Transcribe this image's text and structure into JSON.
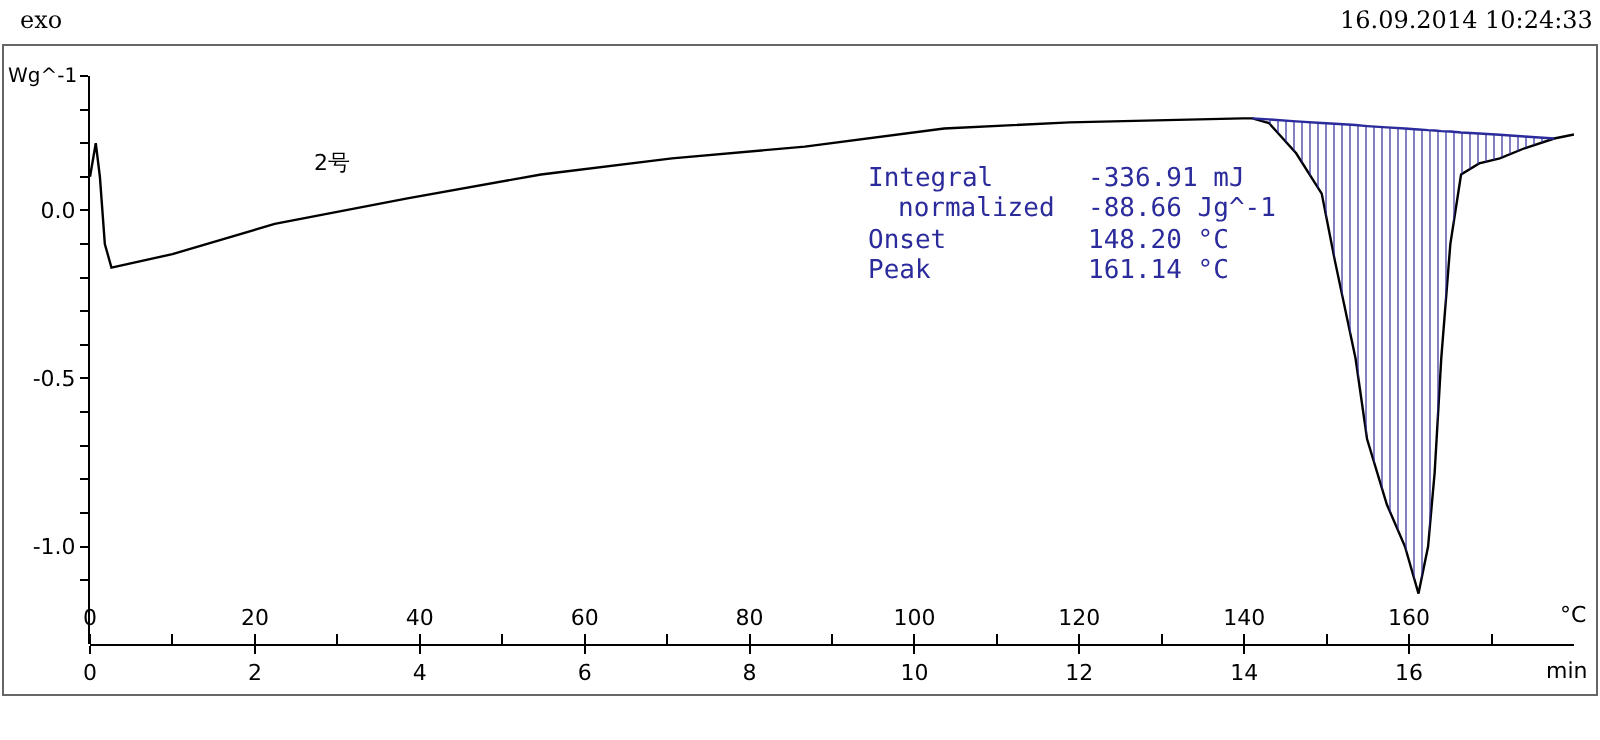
{
  "chart_data": {
    "type": "line",
    "x": [
      0,
      0.7,
      1.2,
      1.8,
      2.6,
      10,
      22.4,
      38.5,
      54.7,
      70.6,
      86.7,
      103.6,
      118.8,
      139.8,
      141,
      143,
      146.3,
      149.4,
      151,
      153.5,
      154.9,
      157.3,
      159.5,
      161.14,
      162.3,
      163.1,
      163.9,
      165,
      166.3,
      168.5,
      171,
      174,
      177.6,
      180
    ],
    "series": [
      {
        "color": "#000000",
        "values": [
          0.1,
          0.2,
          0.1,
          -0.1,
          -0.17,
          -0.13,
          -0.04,
          0.036,
          0.107,
          0.155,
          0.19,
          0.244,
          0.262,
          0.274,
          0.274,
          0.26,
          0.17,
          0.05,
          -0.15,
          -0.44,
          -0.68,
          -0.875,
          -1.0,
          -1.14,
          -1.0,
          -0.78,
          -0.44,
          -0.1,
          0.107,
          0.14,
          0.155,
          0.185,
          0.214,
          0.226
        ]
      },
      {
        "type": "line",
        "color": "#2b2b9c",
        "x": [
          141,
          143,
          146.3,
          149.4,
          151,
          153.5,
          154.9,
          157.3,
          159.5,
          161.14,
          162.3,
          163.1,
          163.9,
          165,
          166.3,
          168.5,
          171,
          174,
          177.6
        ],
        "values": [
          0.274,
          0.271,
          0.265,
          0.26,
          0.258,
          0.254,
          0.251,
          0.247,
          0.244,
          0.241,
          0.239,
          0.238,
          0.236,
          0.235,
          0.232,
          0.229,
          0.225,
          0.22,
          0.214
        ],
        "lower": [
          0.274,
          0.26,
          0.17,
          0.05,
          -0.15,
          -0.44,
          -0.68,
          -0.875,
          -1.0,
          -1.14,
          -1.0,
          -0.78,
          -0.44,
          -0.1,
          0.107,
          0.14,
          0.155,
          0.185,
          0.214
        ],
        "upper": [
          0.274,
          0.271,
          0.265,
          0.26,
          0.258,
          0.254,
          0.251,
          0.247,
          0.244,
          0.241,
          0.239,
          0.238,
          0.236,
          0.235,
          0.232,
          0.229,
          0.225,
          0.22,
          0.214
        ]
      }
    ],
    "xlabel": "°C",
    "x2label": "min",
    "ylabel": "Wg^-1",
    "xlim": [
      0,
      180
    ],
    "xticks": [
      0,
      {
        "value": 10,
        "label": null
      },
      20,
      {
        "value": 30,
        "label": null
      },
      40,
      {
        "value": 50,
        "label": null
      },
      60,
      {
        "value": 70,
        "label": null
      },
      80,
      {
        "value": 90,
        "label": null
      },
      100,
      {
        "value": 110,
        "label": null
      },
      120,
      {
        "value": 130,
        "label": null
      },
      140,
      {
        "value": 150,
        "label": null
      },
      160,
      {
        "value": 170,
        "label": null
      }
    ],
    "x2lim": [
      0,
      18
    ],
    "x2ticks": [
      0,
      2,
      4,
      6,
      8,
      10,
      12,
      14,
      16
    ],
    "ylim": [
      -1.29,
      0.4
    ],
    "yticks": [
      {
        "value": 0.4,
        "label": null
      },
      {
        "value": 0.3,
        "label": null
      },
      {
        "value": 0.2,
        "label": null
      },
      {
        "value": 0.1,
        "label": null
      },
      {
        "value": 0,
        "label": "0.0"
      },
      {
        "value": -0.1,
        "label": null
      },
      {
        "value": -0.2,
        "label": null
      },
      {
        "value": -0.3,
        "label": null
      },
      {
        "value": -0.4,
        "label": null
      },
      {
        "value": -0.5,
        "label": "-0.5"
      },
      {
        "value": -0.6,
        "label": null
      },
      {
        "value": -0.7,
        "label": null
      },
      {
        "value": -0.8,
        "label": null
      },
      {
        "value": -0.9,
        "label": null
      },
      {
        "value": -1,
        "label": "-1.0"
      },
      {
        "value": -1.1,
        "label": null
      }
    ],
    "annotations": [
      "exo",
      "16.09.2014 10:24:33",
      "2号",
      "Integral",
      "-336.91 mJ",
      "normalized",
      "-88.66 Jg^-1",
      "Onset",
      "148.20 °C",
      "Peak",
      "161.14 °C"
    ],
    "grid": false,
    "line_style": "solid",
    "marker": "none"
  }
}
